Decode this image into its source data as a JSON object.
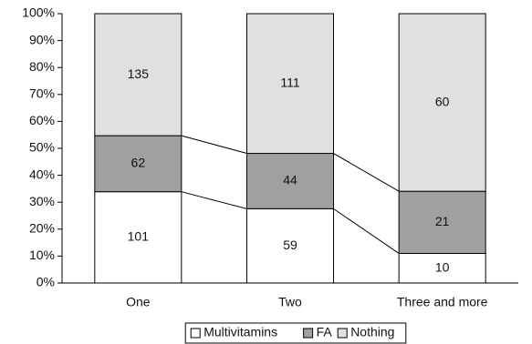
{
  "chart_data": {
    "type": "bar",
    "stacking": "percent",
    "categories": [
      "One",
      "Two",
      "Three and more"
    ],
    "series": [
      {
        "name": "Multivitamins",
        "color": "#ffffff",
        "values": [
          101,
          59,
          10
        ]
      },
      {
        "name": "FA",
        "color": "#a0a0a0",
        "values": [
          62,
          44,
          21
        ]
      },
      {
        "name": "Nothing",
        "color": "#e0e0e0",
        "values": [
          135,
          111,
          60
        ]
      }
    ],
    "ylim": [
      0,
      100
    ],
    "yticks": [
      {
        "value": 0,
        "label": "0%"
      },
      {
        "value": 10,
        "label": "10%"
      },
      {
        "value": 20,
        "label": "20%"
      },
      {
        "value": 30,
        "label": "30%"
      },
      {
        "value": 40,
        "label": "40%"
      },
      {
        "value": 50,
        "label": "50%"
      },
      {
        "value": 60,
        "label": "60%"
      },
      {
        "value": 70,
        "label": "70%"
      },
      {
        "value": 80,
        "label": "80%"
      },
      {
        "value": 90,
        "label": "90%"
      },
      {
        "value": 100,
        "label": "100%"
      }
    ],
    "legend": "bottom"
  }
}
